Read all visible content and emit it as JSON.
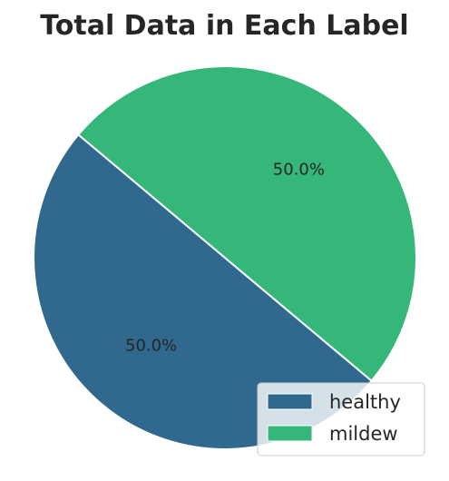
{
  "chart_data": {
    "type": "pie",
    "title": "Total Data in Each Label",
    "categories": [
      "healthy",
      "mildew"
    ],
    "values": [
      50.0,
      50.0
    ],
    "percent_labels": [
      "50.0%",
      "50.0%"
    ],
    "colors": [
      "#31688e",
      "#35b779"
    ],
    "start_angle_deg": 140,
    "legend_position": "lower-right"
  }
}
